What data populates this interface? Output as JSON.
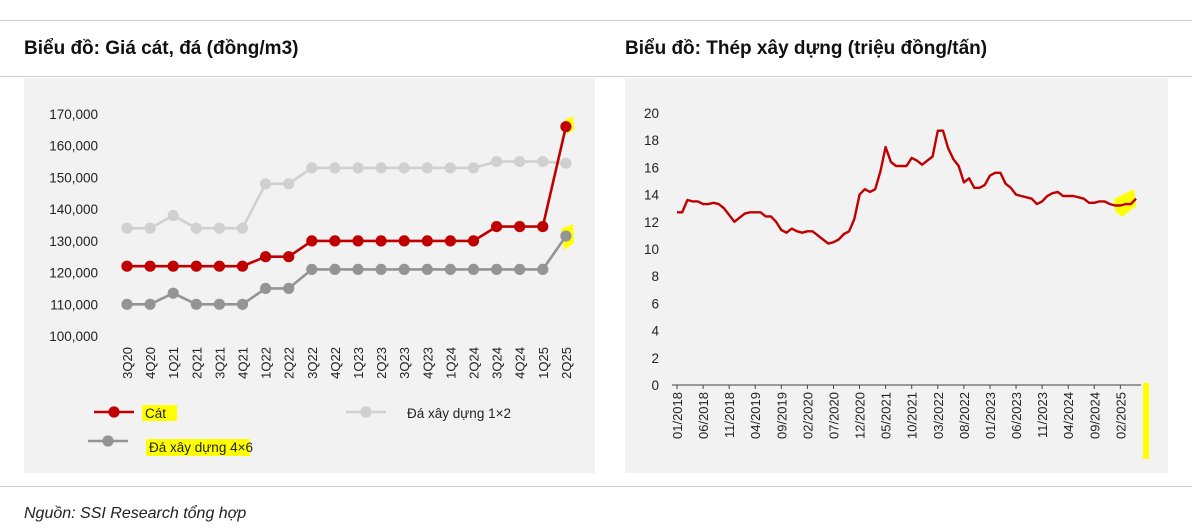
{
  "titles": {
    "left": "Biểu đồ: Giá cát, đá (đồng/m3)",
    "right": "Biểu đồ: Thép xây dựng (triệu đồng/tấn)"
  },
  "source": "Nguồn: SSI Research tổng hợp",
  "colors": {
    "cat": "#c00000",
    "da12": "#d0d0d0",
    "da46": "#949494",
    "steel": "#c00000",
    "highlight": "#ffff00"
  },
  "chart_data": [
    {
      "type": "line",
      "categories": [
        "3Q20",
        "4Q20",
        "1Q21",
        "2Q21",
        "3Q21",
        "4Q21",
        "1Q22",
        "2Q22",
        "3Q22",
        "4Q22",
        "1Q23",
        "2Q23",
        "3Q23",
        "4Q23",
        "1Q24",
        "2Q24",
        "3Q24",
        "4Q24",
        "1Q25",
        "2Q25"
      ],
      "ylim": [
        100000,
        170000
      ],
      "yticks": [
        "100,000",
        "110,000",
        "120,000",
        "130,000",
        "140,000",
        "150,000",
        "160,000",
        "170,000"
      ],
      "legend": {
        "cat": "Cát",
        "da12": "Đá xây dựng 1×2",
        "da46_a": "Đá xây dựng 4",
        "da46_b": "×6"
      },
      "series": [
        {
          "name": "Cát",
          "values": [
            122000,
            122000,
            122000,
            122000,
            122000,
            122000,
            125000,
            125000,
            130000,
            130000,
            130000,
            130000,
            130000,
            130000,
            130000,
            130000,
            134500,
            134500,
            134500,
            166000
          ]
        },
        {
          "name": "Đá xây dựng 1×2",
          "values": [
            134000,
            134000,
            138000,
            134000,
            134000,
            134000,
            148000,
            148000,
            153000,
            153000,
            153000,
            153000,
            153000,
            153000,
            153000,
            153000,
            155000,
            155000,
            155000,
            154500
          ]
        },
        {
          "name": "Đá xây dựng 4×6",
          "values": [
            110000,
            110000,
            113500,
            110000,
            110000,
            110000,
            115000,
            115000,
            121000,
            121000,
            121000,
            121000,
            121000,
            121000,
            121000,
            121000,
            121000,
            121000,
            121000,
            131500
          ]
        }
      ]
    },
    {
      "type": "line",
      "xticks": [
        "01/2018",
        "06/2018",
        "11/2018",
        "04/2019",
        "09/2019",
        "02/2020",
        "07/2020",
        "12/2020",
        "05/2021",
        "10/2021",
        "03/2022",
        "08/2022",
        "01/2023",
        "06/2023",
        "11/2023",
        "04/2024",
        "09/2024",
        "02/2025"
      ],
      "ylim": [
        0,
        20
      ],
      "yticks": [
        "0",
        "2",
        "4",
        "6",
        "8",
        "10",
        "12",
        "14",
        "16",
        "18",
        "20"
      ],
      "series": [
        {
          "name": "",
          "values": [
            12.7,
            12.7,
            13.6,
            13.5,
            13.5,
            13.3,
            13.3,
            13.4,
            13.3,
            13.0,
            12.5,
            12.0,
            12.3,
            12.6,
            12.7,
            12.7,
            12.7,
            12.4,
            12.4,
            12.0,
            11.4,
            11.2,
            11.5,
            11.3,
            11.2,
            11.3,
            11.3,
            11.0,
            10.7,
            10.4,
            10.5,
            10.7,
            11.1,
            11.3,
            12.2,
            14.0,
            14.4,
            14.2,
            14.4,
            15.7,
            17.5,
            16.4,
            16.1,
            16.1,
            16.1,
            16.7,
            16.5,
            16.2,
            16.5,
            16.8,
            18.7,
            18.7,
            17.4,
            16.6,
            16.1,
            14.9,
            15.2,
            14.5,
            14.5,
            14.7,
            15.4,
            15.6,
            15.6,
            14.8,
            14.5,
            14.0,
            13.9,
            13.8,
            13.7,
            13.3,
            13.5,
            13.9,
            14.1,
            14.2,
            13.9,
            13.9,
            13.9,
            13.8,
            13.7,
            13.4,
            13.4,
            13.5,
            13.5,
            13.3,
            13.2,
            13.2,
            13.3,
            13.3,
            13.7
          ]
        }
      ]
    }
  ]
}
